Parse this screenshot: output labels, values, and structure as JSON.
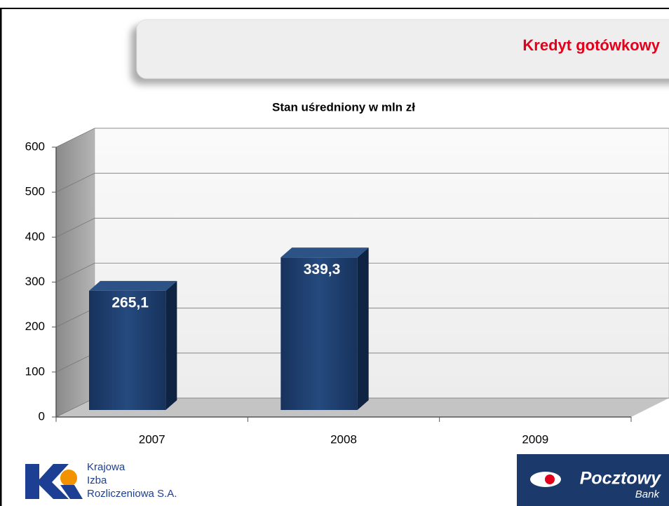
{
  "header": {
    "title": "Kredyt gotówkowy"
  },
  "chart_data": {
    "type": "bar3d",
    "title": "Stan uśredniony w mln zł",
    "categories": [
      "2007",
      "2008",
      "2009"
    ],
    "values": [
      265.1,
      339.3,
      null
    ],
    "value_labels": [
      "265,1",
      "339,3",
      null
    ],
    "color": "#1f3a66",
    "ylim": [
      0,
      600
    ],
    "yticks": [
      0,
      100,
      200,
      300,
      400,
      500,
      600
    ],
    "grid": true
  },
  "logos": {
    "kir": [
      "Krajowa",
      "Izba",
      "Rozliczeniowa S.A."
    ],
    "bank": [
      "Pocztowy",
      "Bank"
    ]
  }
}
